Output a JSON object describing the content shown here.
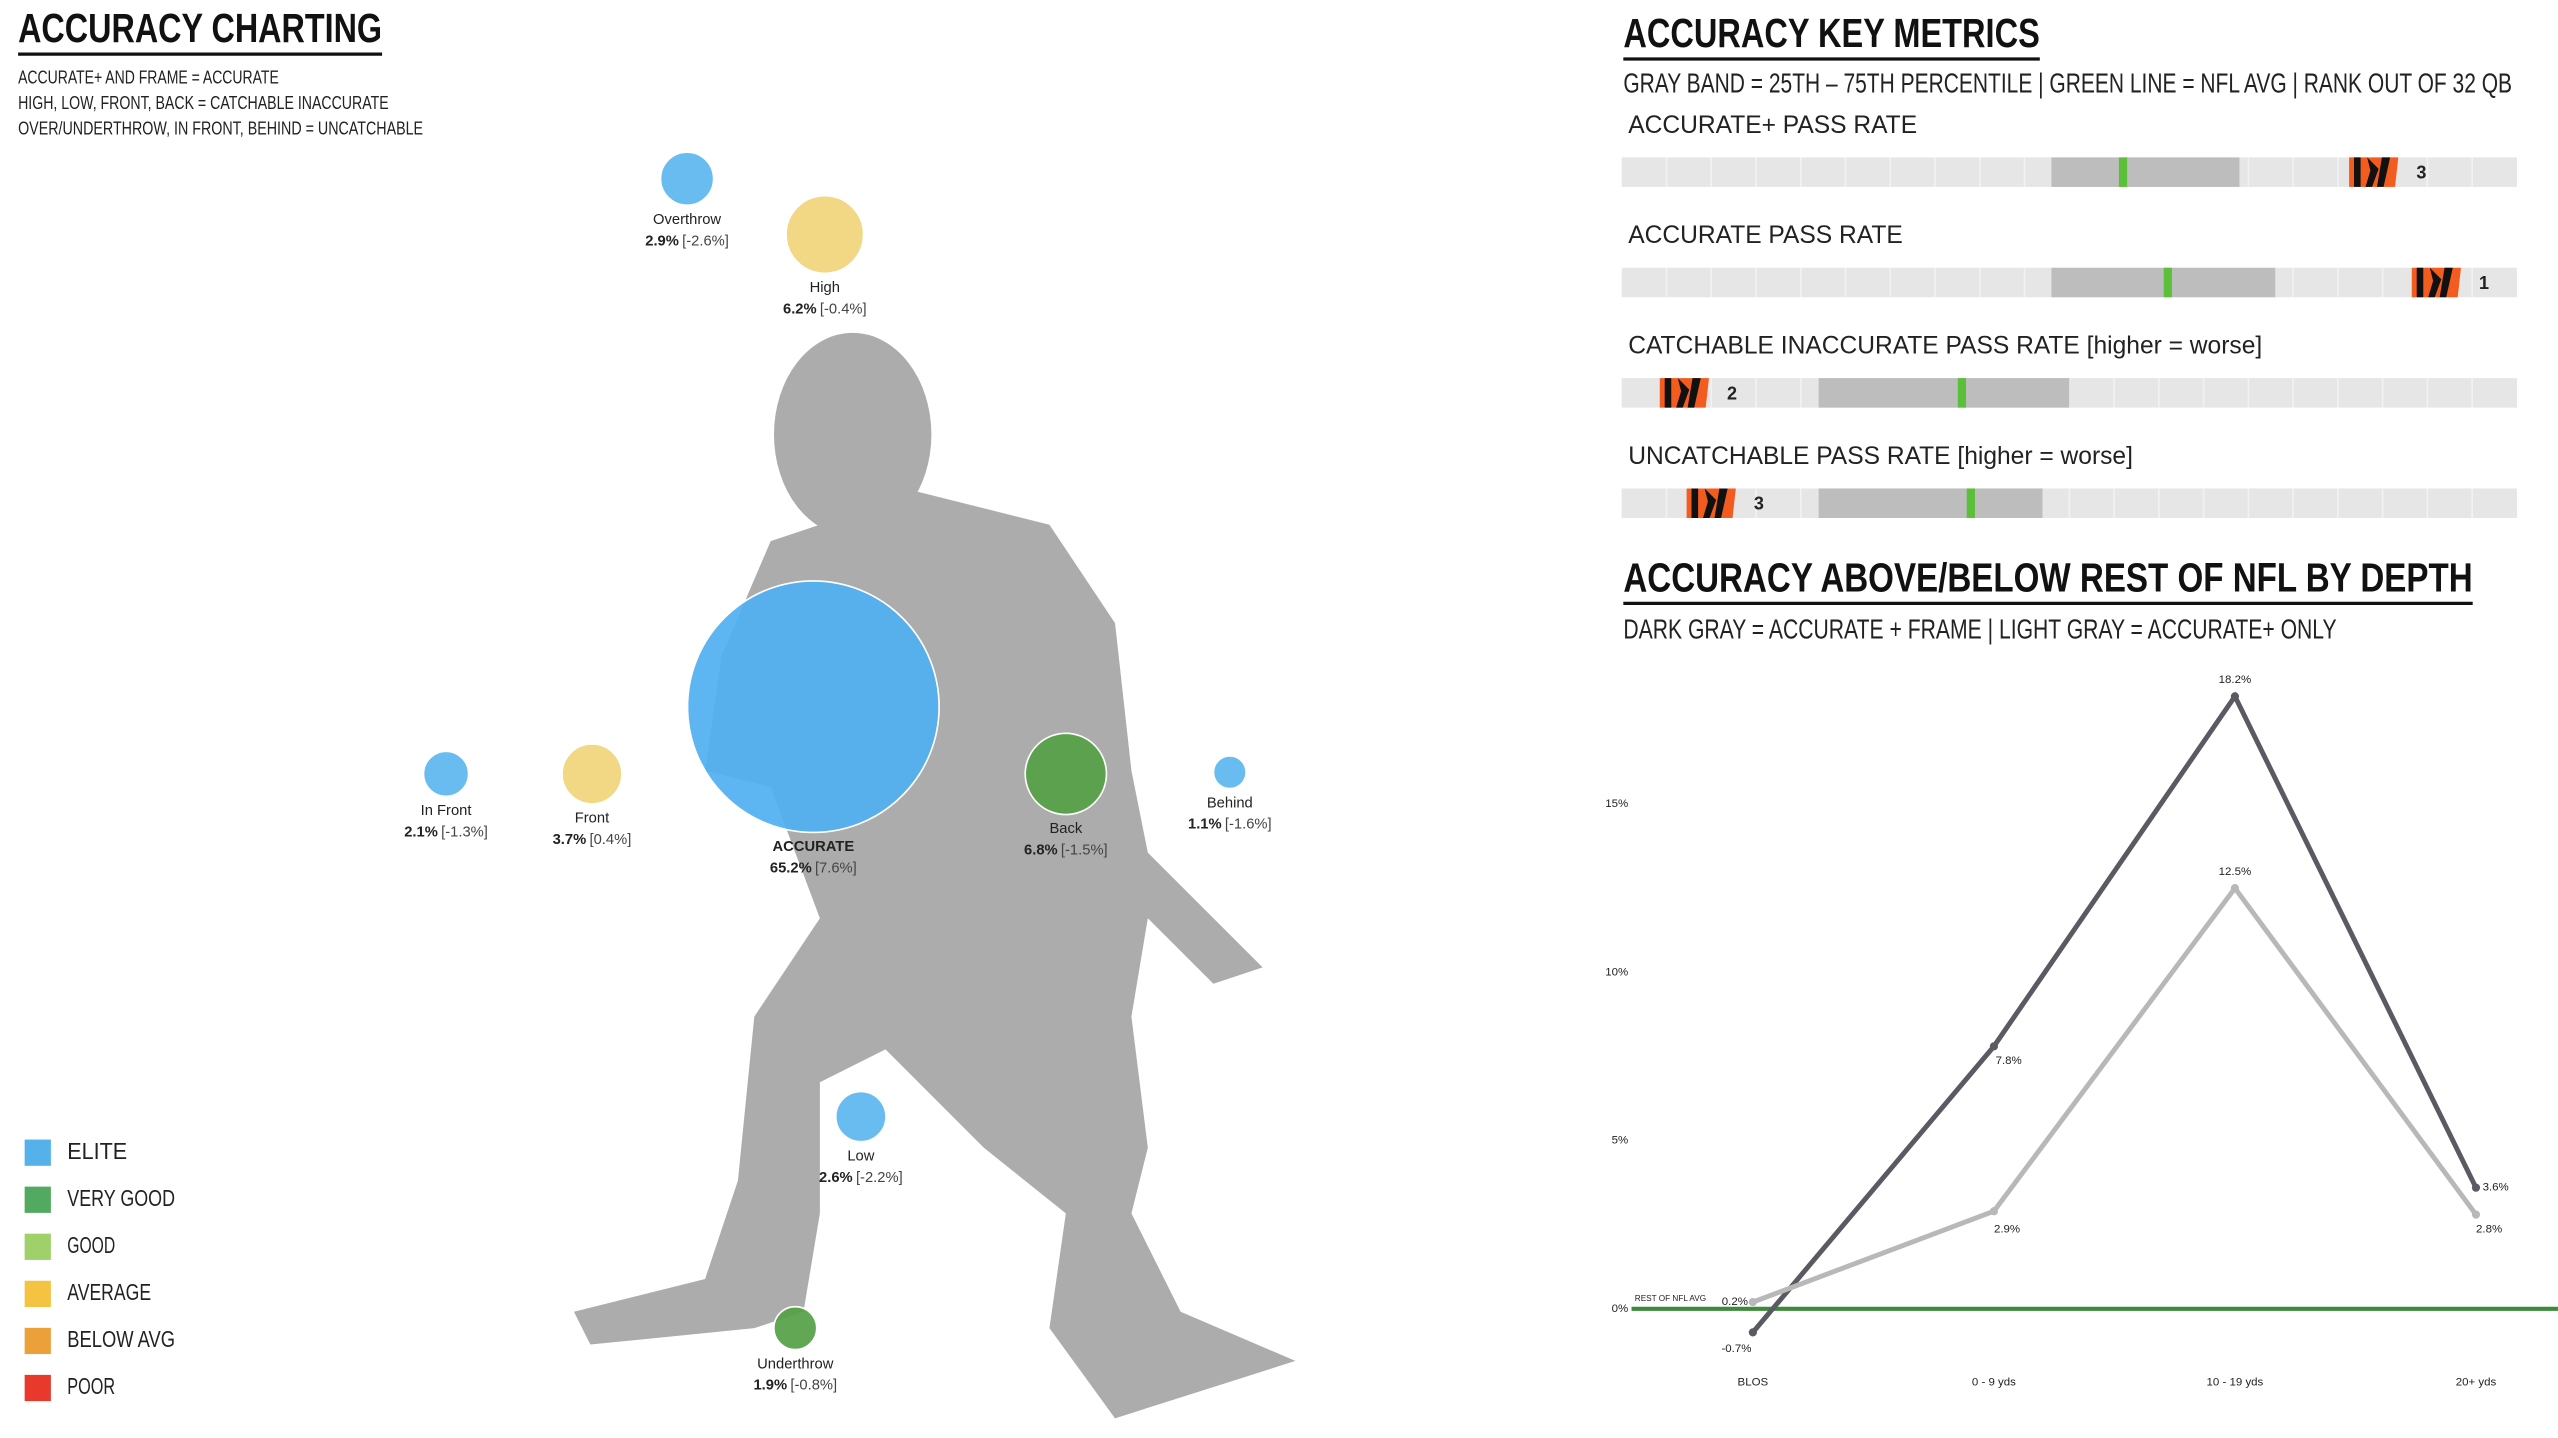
{
  "chart_data": [
    {
      "type": "bubble",
      "title": "ACCURACY CHARTING",
      "notes": [
        "ACCURATE+ AND FRAME = ACCURATE",
        "HIGH, LOW, FRONT, BACK = CATCHABLE INACCURATE",
        "OVER/UNDERTHROW, IN FRONT, BEHIND = UNCATCHABLE"
      ],
      "categories": [
        "Overthrow",
        "High",
        "ACCURATE",
        "In Front",
        "Front",
        "Back",
        "Behind",
        "Low",
        "Underthrow"
      ],
      "values": [
        2.9,
        6.2,
        65.2,
        2.1,
        3.7,
        6.8,
        1.1,
        2.6,
        1.9
      ],
      "value_labels": [
        "2.9%",
        "6.2%",
        "65.2%",
        "2.1%",
        "3.7%",
        "6.8%",
        "1.1%",
        "2.6%",
        "1.9%"
      ],
      "vs_avg": [
        -2.6,
        -0.4,
        7.6,
        -1.3,
        0.4,
        -1.5,
        -1.6,
        -2.2,
        -0.8
      ],
      "vs_avg_labels": [
        "[-2.6%]",
        "[-0.4%]",
        "[7.6%]",
        "[-1.3%]",
        "[0.4%]",
        "[-1.5%]",
        "[-1.6%]",
        "[-2.2%]",
        "[-0.8%]"
      ],
      "colors": [
        "#5bb6ee",
        "#f1d47a",
        "#4fb0f0",
        "#5bb6ee",
        "#f1d47a",
        "#55a044",
        "#5bb6ee",
        "#5bb6ee",
        "#55a044"
      ],
      "legend": [
        {
          "label": "ELITE",
          "color": "#55b1ea"
        },
        {
          "label": "VERY GOOD",
          "color": "#52a960"
        },
        {
          "label": "GOOD",
          "color": "#9fd06a"
        },
        {
          "label": "AVERAGE",
          "color": "#f5c342"
        },
        {
          "label": "BELOW AVG",
          "color": "#eca03a"
        },
        {
          "label": "POOR",
          "color": "#e8392d"
        }
      ]
    },
    {
      "type": "bullet",
      "title": "ACCURACY KEY METRICS",
      "subtitle": "GRAY BAND = 25TH – 75TH PERCENTILE | GREEN LINE = NFL AVG | RANK OUT OF 32 QB",
      "xlim": [
        0,
        100
      ],
      "rows": [
        {
          "label": "ACCURATE+ PASS RATE",
          "value": 84,
          "p25": 48,
          "p75": 69,
          "avg": 56,
          "rank": 3
        },
        {
          "label": "ACCURATE PASS RATE",
          "value": 91,
          "p25": 48,
          "p75": 73,
          "avg": 61,
          "rank": 1
        },
        {
          "label": "CATCHABLE INACCURATE PASS RATE [higher = worse]",
          "value": 7,
          "p25": 22,
          "p75": 50,
          "avg": 38,
          "rank": 2
        },
        {
          "label": "UNCATCHABLE PASS RATE [higher = worse]",
          "value": 10,
          "p25": 22,
          "p75": 47,
          "avg": 39,
          "rank": 3
        }
      ]
    },
    {
      "type": "line",
      "title": "ACCURACY ABOVE/BELOW REST OF NFL BY DEPTH",
      "subtitle": "DARK GRAY = ACCURATE + FRAME | LIGHT GRAY = ACCURATE+ ONLY",
      "categories": [
        "BLOS",
        "0 - 9 yds",
        "10 - 19 yds",
        "20+ yds"
      ],
      "series": [
        {
          "color": "#5a5a62",
          "values": [
            -0.7,
            7.8,
            18.2,
            3.6
          ],
          "value_labels": [
            "-0.7%",
            "7.8%",
            "18.2%",
            "3.6%"
          ]
        },
        {
          "color": "#b8b8b8",
          "values": [
            0.2,
            2.9,
            12.5,
            2.8
          ],
          "value_labels": [
            "0.2%",
            "2.9%",
            "12.5%",
            "2.8%"
          ]
        }
      ],
      "ylim": [
        -1.5,
        19.5
      ],
      "yticks": [
        {
          "value": 0,
          "label": "0%"
        },
        {
          "value": 5,
          "label": "5%"
        },
        {
          "value": 10,
          "label": "10%"
        },
        {
          "value": 15,
          "label": "15%"
        }
      ],
      "reference": {
        "value": 0,
        "label": "REST OF NFL AVG",
        "color": "#3d8a3a"
      }
    }
  ]
}
